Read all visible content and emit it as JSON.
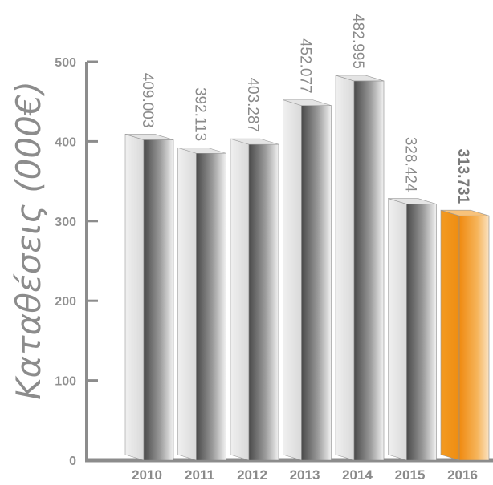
{
  "chart_data": {
    "type": "bar",
    "title": "",
    "xlabel": "",
    "ylabel": "Καταθέσεις (000€)",
    "categories": [
      "2010",
      "2011",
      "2012",
      "2013",
      "2014",
      "2015",
      "2016"
    ],
    "values": [
      409.003,
      392.113,
      403.287,
      452.077,
      482.995,
      328.424,
      313.731
    ],
    "value_labels": [
      "409.003",
      "392.113",
      "403.287",
      "452.077",
      "482.995",
      "328.424",
      "313.731"
    ],
    "highlighted_category": "2016",
    "ylim": [
      0,
      500
    ],
    "yticks": [
      0,
      100,
      200,
      300,
      400,
      500
    ],
    "ytick_labels": [
      "0",
      "100",
      "200",
      "300",
      "400",
      "500"
    ],
    "grid": false,
    "colors": {
      "bar": "#8a8a8a",
      "bar_highlight": "#f39a22",
      "axis": "#8c8c8c"
    }
  }
}
